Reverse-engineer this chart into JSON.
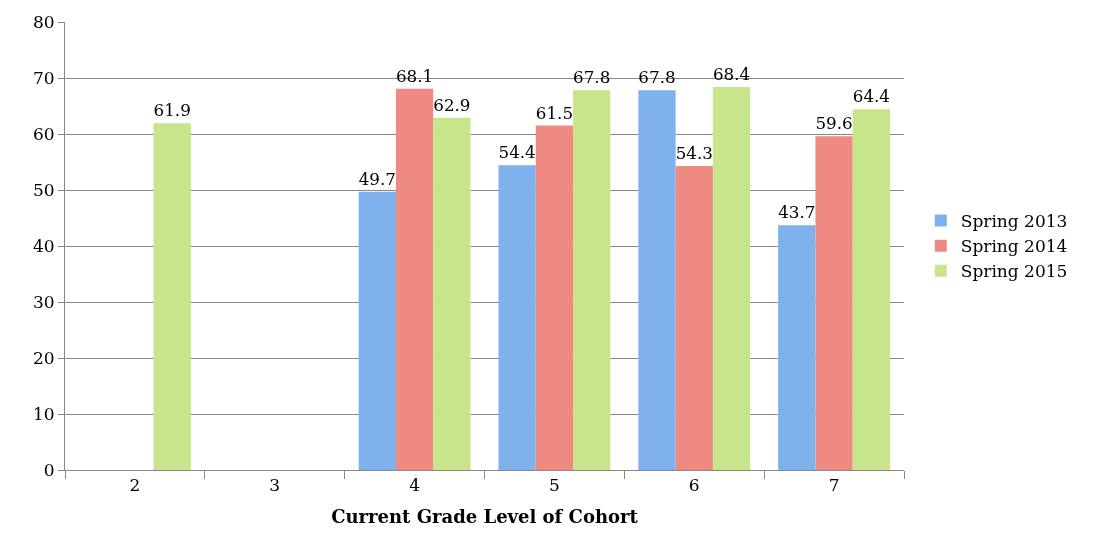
{
  "chart_data": {
    "type": "bar",
    "xlabel": "Current Grade Level of Cohort",
    "categories": [
      "2",
      "3",
      "4",
      "5",
      "6",
      "7"
    ],
    "series": [
      {
        "name": "Spring 2013",
        "color": "#7fb1ec",
        "values": [
          null,
          null,
          49.7,
          54.4,
          67.8,
          43.7
        ]
      },
      {
        "name": "Spring 2014",
        "color": "#ef8a82",
        "values": [
          null,
          null,
          68.1,
          61.5,
          54.3,
          59.6
        ]
      },
      {
        "name": "Spring 2015",
        "color": "#c9e58c",
        "values": [
          61.9,
          null,
          62.9,
          67.8,
          68.4,
          64.4
        ]
      }
    ],
    "ylim": [
      0,
      80
    ],
    "yticks": [
      0,
      10,
      20,
      30,
      40,
      50,
      60,
      70,
      80
    ],
    "grid": "y",
    "legend": "right",
    "data_labels": true
  }
}
